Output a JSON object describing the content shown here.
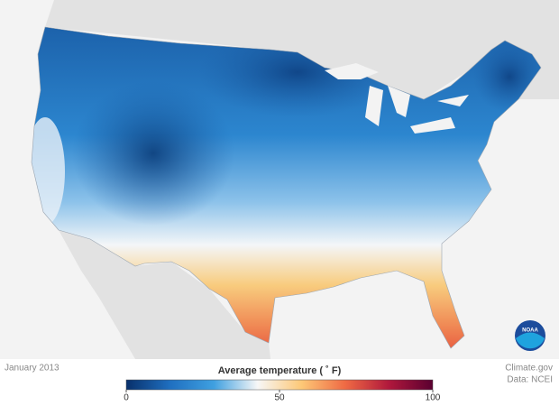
{
  "map": {
    "date": "January 2013",
    "credit": "Climate.gov",
    "source": "Data: NCEI",
    "logo": "NOAA"
  },
  "legend": {
    "title": "Average temperature ( ˚ F)",
    "range": [
      0,
      100
    ],
    "ticks": [
      0,
      50,
      100
    ],
    "colors": [
      "#08306b",
      "#1f6fc0",
      "#3fa0e0",
      "#f7f7f7",
      "#fdc877",
      "#ef6a44",
      "#b0183c",
      "#5a0030"
    ]
  }
}
